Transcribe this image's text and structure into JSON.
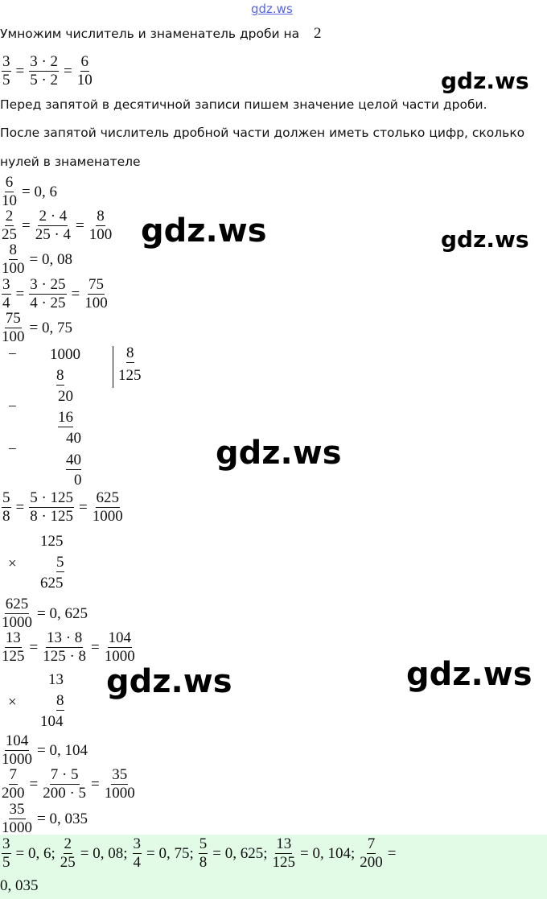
{
  "header": "gdz.ws",
  "intro": "Умножим числитель и знаменатель дроби на",
  "intro_num": "2",
  "p1": "Перед запятой в десятичной записи пишем значение целой части дроби.",
  "p2a": "После запятой числитель дробной части должен иметь столько цифр, сколько",
  "p2b": "нулей в знаменателе",
  "math": [
    [
      [
        "3",
        "5"
      ],
      "=",
      [
        "3 · 2",
        "5 · 2"
      ],
      "=",
      [
        "6",
        "10"
      ]
    ],
    [
      [
        "6",
        "10"
      ],
      "= 0, 6"
    ],
    [
      [
        "2",
        "25"
      ],
      "=",
      [
        "2 · 4",
        "25 · 4"
      ],
      "=",
      [
        "8",
        "100"
      ]
    ],
    [
      [
        "8",
        "100"
      ],
      "= 0, 08"
    ],
    [
      [
        "3",
        "4"
      ],
      "=",
      [
        "3 · 25",
        "4 · 25"
      ],
      "=",
      [
        "75",
        "100"
      ]
    ],
    [
      [
        "75",
        "100"
      ],
      "= 0, 75"
    ],
    [
      [
        "5",
        "8"
      ],
      "=",
      [
        "5 · 125",
        "8 · 125"
      ],
      "=",
      [
        "625",
        "1000"
      ]
    ],
    [
      [
        "625",
        "1000"
      ],
      "= 0, 625"
    ],
    [
      [
        "13",
        "125"
      ],
      "=",
      [
        "13 · 8",
        "125 · 8"
      ],
      "=",
      [
        "104",
        "1000"
      ]
    ],
    [
      [
        "104",
        "1000"
      ],
      "= 0, 104"
    ],
    [
      [
        "7",
        "200"
      ],
      "=",
      [
        "7 · 5",
        "200 · 5"
      ],
      "=",
      [
        "35",
        "1000"
      ]
    ],
    [
      [
        "35",
        "1000"
      ],
      "= 0, 035"
    ]
  ],
  "division": {
    "minus": "−",
    "rows": [
      "1000",
      "8",
      "20",
      "16",
      "40",
      "40",
      "0"
    ],
    "divisor": "8",
    "quotient": "125"
  },
  "mult1": {
    "sign": "×",
    "rows": [
      "125",
      "5",
      "625"
    ]
  },
  "mult2": {
    "sign": "×",
    "rows": [
      "13",
      "8",
      "104"
    ]
  },
  "answer": [
    [
      "3",
      "5"
    ],
    "= 0, 6;",
    [
      "2",
      "25"
    ],
    "= 0, 08;",
    [
      "3",
      "4"
    ],
    "= 0, 75;",
    [
      "5",
      "8"
    ],
    "= 0, 625;",
    [
      "13",
      "125"
    ],
    "= 0, 104;",
    [
      "7",
      "200"
    ],
    "="
  ],
  "answer_tail": "0, 035",
  "watermarks": [
    "gdz.ws",
    "gdz.ws",
    "gdz.ws",
    "gdz.ws",
    "gdz.ws",
    "gdz.ws"
  ]
}
